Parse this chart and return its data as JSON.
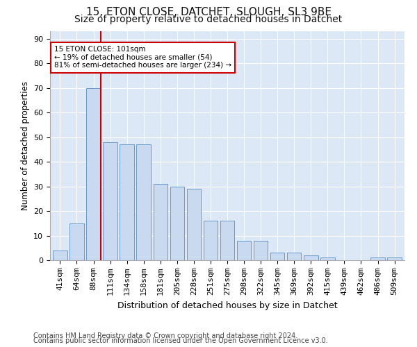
{
  "title1": "15, ETON CLOSE, DATCHET, SLOUGH, SL3 9BE",
  "title2": "Size of property relative to detached houses in Datchet",
  "xlabel": "Distribution of detached houses by size in Datchet",
  "ylabel": "Number of detached properties",
  "categories": [
    "41sqm",
    "64sqm",
    "88sqm",
    "111sqm",
    "134sqm",
    "158sqm",
    "181sqm",
    "205sqm",
    "228sqm",
    "251sqm",
    "275sqm",
    "298sqm",
    "322sqm",
    "345sqm",
    "369sqm",
    "392sqm",
    "415sqm",
    "439sqm",
    "462sqm",
    "486sqm",
    "509sqm"
  ],
  "values": [
    4,
    15,
    70,
    48,
    47,
    47,
    31,
    30,
    29,
    16,
    16,
    8,
    8,
    3,
    3,
    2,
    1,
    0,
    0,
    1,
    1
  ],
  "bar_color": "#c9d9f0",
  "bar_edge_color": "#6699cc",
  "vline_x_index": 2,
  "vline_color": "#cc0000",
  "annotation_text": "15 ETON CLOSE: 101sqm\n← 19% of detached houses are smaller (54)\n81% of semi-detached houses are larger (234) →",
  "annotation_box_color": "#ffffff",
  "annotation_box_edge": "#cc0000",
  "ylim": [
    0,
    93
  ],
  "yticks": [
    0,
    10,
    20,
    30,
    40,
    50,
    60,
    70,
    80,
    90
  ],
  "bg_color": "#dce8f5",
  "footer1": "Contains HM Land Registry data © Crown copyright and database right 2024.",
  "footer2": "Contains public sector information licensed under the Open Government Licence v3.0.",
  "title1_fontsize": 11,
  "title2_fontsize": 10,
  "xlabel_fontsize": 9,
  "ylabel_fontsize": 8.5,
  "tick_fontsize": 8,
  "footer_fontsize": 7.0
}
